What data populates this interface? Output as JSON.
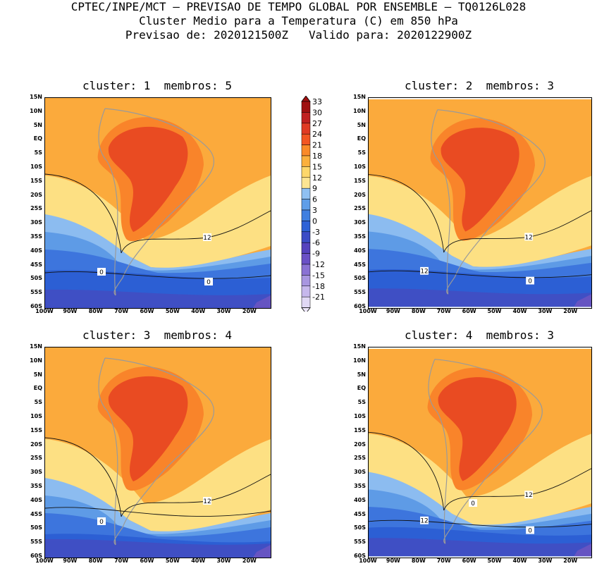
{
  "header": {
    "line1": "CPTEC/INPE/MCT — PREVISAO DE TEMPO GLOBAL POR ENSEMBLE — TQ0126L028",
    "line2": "Cluster Medio para a Temperatura (C) em 850 hPa",
    "line3": "Previsao de: 2020121500Z   Valido para: 2020122900Z"
  },
  "panels": [
    {
      "title": "cluster: 1  membros: 5",
      "contour_labels": [
        "12",
        "0",
        "0"
      ]
    },
    {
      "title": "cluster: 2  membros: 3",
      "contour_labels": [
        "12",
        "12",
        "0"
      ]
    },
    {
      "title": "cluster: 3  membros: 4",
      "contour_labels": [
        "12",
        "0"
      ]
    },
    {
      "title": "cluster: 4  membros: 3",
      "contour_labels": [
        "12",
        "12",
        "0",
        "0"
      ]
    }
  ],
  "lat_labels": [
    "15N",
    "10N",
    "5N",
    "EQ",
    "5S",
    "10S",
    "15S",
    "20S",
    "25S",
    "30S",
    "35S",
    "40S",
    "45S",
    "50S",
    "55S",
    "60S"
  ],
  "lon_labels": [
    "100W",
    "90W",
    "80W",
    "70W",
    "60W",
    "50W",
    "40W",
    "30W",
    "20W"
  ],
  "colorbar": {
    "labels": [
      "33",
      "30",
      "27",
      "24",
      "21",
      "18",
      "15",
      "12",
      "9",
      "6",
      "3",
      "0",
      "-3",
      "-6",
      "-9",
      "-12",
      "-15",
      "-18",
      "-21"
    ],
    "colors": [
      "#a01010",
      "#c02020",
      "#e03a24",
      "#f25522",
      "#fa8a28",
      "#fbb03c",
      "#fdd76a",
      "#fce592",
      "#8fc0f2",
      "#5f9ee8",
      "#3f7fe0",
      "#2d62d6",
      "#3b4cc6",
      "#5542be",
      "#6a50c6",
      "#8a72d4",
      "#a896e0",
      "#c6b8ec",
      "#e0d8f4"
    ]
  },
  "palette": {
    "t_hot": "#e94b22",
    "t_warm": "#f9842a",
    "t_mild": "#fbaa3c",
    "t_cool": "#fde083",
    "t_cold1": "#8cbcf0",
    "t_cold2": "#5e9be6",
    "t_cold3": "#3d75dd",
    "t_cold4": "#2c5fd4",
    "t_cold5": "#3f4fc4",
    "t_cold6": "#6654c2"
  }
}
